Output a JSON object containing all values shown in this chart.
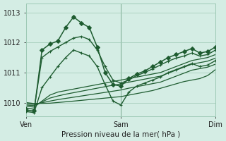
{
  "bg_color": "#d4ede4",
  "plot_bg_color": "#d4ede4",
  "grid_color": "#9ec9b5",
  "line_color": "#1e5c30",
  "xlabel": "Pression niveau de la mer( hPa )",
  "ylim": [
    1009.55,
    1013.3
  ],
  "yticks": [
    1010,
    1011,
    1012,
    1013
  ],
  "xticks_pos": [
    0,
    12,
    24
  ],
  "xticklabels": [
    "Ven",
    "Sam",
    "Dim"
  ],
  "vlines": [
    12,
    24
  ],
  "figsize": [
    3.2,
    2.0
  ],
  "dpi": 100,
  "series": [
    {
      "x": [
        0,
        1,
        2,
        3,
        4,
        5,
        6,
        7,
        8,
        9,
        10,
        11,
        12,
        13,
        14,
        15,
        16,
        17,
        18,
        19,
        20,
        21,
        22,
        23,
        24
      ],
      "y": [
        1009.75,
        1009.72,
        1011.75,
        1011.95,
        1012.05,
        1012.5,
        1012.85,
        1012.65,
        1012.5,
        1011.85,
        1011.0,
        1010.6,
        1010.55,
        1010.8,
        1010.95,
        1011.05,
        1011.2,
        1011.35,
        1011.5,
        1011.6,
        1011.7,
        1011.8,
        1011.65,
        1011.7,
        1011.85
      ],
      "marker": "D",
      "markersize": 3,
      "lw": 1.1,
      "has_marker": true
    },
    {
      "x": [
        0,
        1,
        2,
        3,
        4,
        5,
        6,
        7,
        8,
        9,
        10,
        11,
        12,
        13,
        14,
        15,
        16,
        17,
        18,
        19,
        20,
        21,
        22,
        23,
        24
      ],
      "y": [
        1009.82,
        1009.78,
        1011.5,
        1011.7,
        1011.85,
        1012.0,
        1012.15,
        1012.2,
        1012.1,
        1011.75,
        1011.2,
        1010.75,
        1010.65,
        1010.75,
        1010.9,
        1011.0,
        1011.12,
        1011.25,
        1011.38,
        1011.48,
        1011.55,
        1011.65,
        1011.55,
        1011.6,
        1011.75
      ],
      "marker": "+",
      "markersize": 3,
      "lw": 1.0,
      "has_marker": true
    },
    {
      "x": [
        0,
        1,
        3,
        4,
        5,
        6,
        7,
        8,
        9,
        10,
        11,
        12,
        13,
        14,
        15,
        16,
        17,
        18,
        19,
        20,
        21,
        22,
        23,
        24
      ],
      "y": [
        1009.88,
        1009.85,
        1010.25,
        1010.35,
        1010.4,
        1010.45,
        1010.5,
        1010.55,
        1010.6,
        1010.65,
        1010.7,
        1010.75,
        1010.8,
        1010.85,
        1010.9,
        1010.95,
        1011.0,
        1011.1,
        1011.2,
        1011.3,
        1011.4,
        1011.45,
        1011.5,
        1011.6
      ],
      "marker": null,
      "lw": 0.9,
      "has_marker": false
    },
    {
      "x": [
        0,
        1,
        3,
        4,
        5,
        6,
        7,
        8,
        9,
        10,
        11,
        12,
        13,
        14,
        15,
        16,
        17,
        18,
        19,
        20,
        21,
        22,
        23,
        24
      ],
      "y": [
        1009.92,
        1009.9,
        1010.15,
        1010.22,
        1010.28,
        1010.33,
        1010.38,
        1010.43,
        1010.48,
        1010.53,
        1010.58,
        1010.62,
        1010.68,
        1010.73,
        1010.78,
        1010.83,
        1010.88,
        1010.98,
        1011.08,
        1011.18,
        1011.28,
        1011.33,
        1011.38,
        1011.48
      ],
      "marker": null,
      "lw": 0.9,
      "has_marker": false
    },
    {
      "x": [
        0,
        1,
        3,
        4,
        5,
        6,
        7,
        8,
        9,
        10,
        11,
        12,
        13,
        14,
        15,
        16,
        17,
        18,
        19,
        20,
        21,
        22,
        23,
        24
      ],
      "y": [
        1009.96,
        1009.94,
        1010.05,
        1010.1,
        1010.14,
        1010.18,
        1010.22,
        1010.26,
        1010.3,
        1010.34,
        1010.38,
        1010.42,
        1010.48,
        1010.53,
        1010.58,
        1010.63,
        1010.68,
        1010.78,
        1010.88,
        1010.98,
        1011.08,
        1011.13,
        1011.18,
        1011.28
      ],
      "marker": null,
      "lw": 0.9,
      "has_marker": false
    },
    {
      "x": [
        0,
        1,
        3,
        6,
        12,
        14,
        16,
        18,
        20,
        21,
        22,
        23,
        24
      ],
      "y": [
        1010.0,
        1009.97,
        1009.98,
        1010.05,
        1010.2,
        1010.3,
        1010.4,
        1010.55,
        1010.7,
        1010.75,
        1010.8,
        1010.9,
        1011.1
      ],
      "marker": null,
      "lw": 0.9,
      "has_marker": false
    },
    {
      "x": [
        0,
        1,
        2,
        3,
        4,
        5,
        6,
        7,
        8,
        9,
        10,
        11,
        12,
        13,
        14,
        15,
        16,
        17,
        18,
        19,
        20,
        21,
        22,
        23,
        24
      ],
      "y": [
        1009.7,
        1009.67,
        1010.5,
        1010.85,
        1011.2,
        1011.5,
        1011.75,
        1011.65,
        1011.55,
        1011.2,
        1010.6,
        1010.05,
        1009.92,
        1010.35,
        1010.55,
        1010.65,
        1010.75,
        1010.85,
        1011.0,
        1011.1,
        1011.2,
        1011.3,
        1011.2,
        1011.25,
        1011.4
      ],
      "marker": "+",
      "markersize": 2.5,
      "lw": 1.0,
      "has_marker": true
    }
  ]
}
